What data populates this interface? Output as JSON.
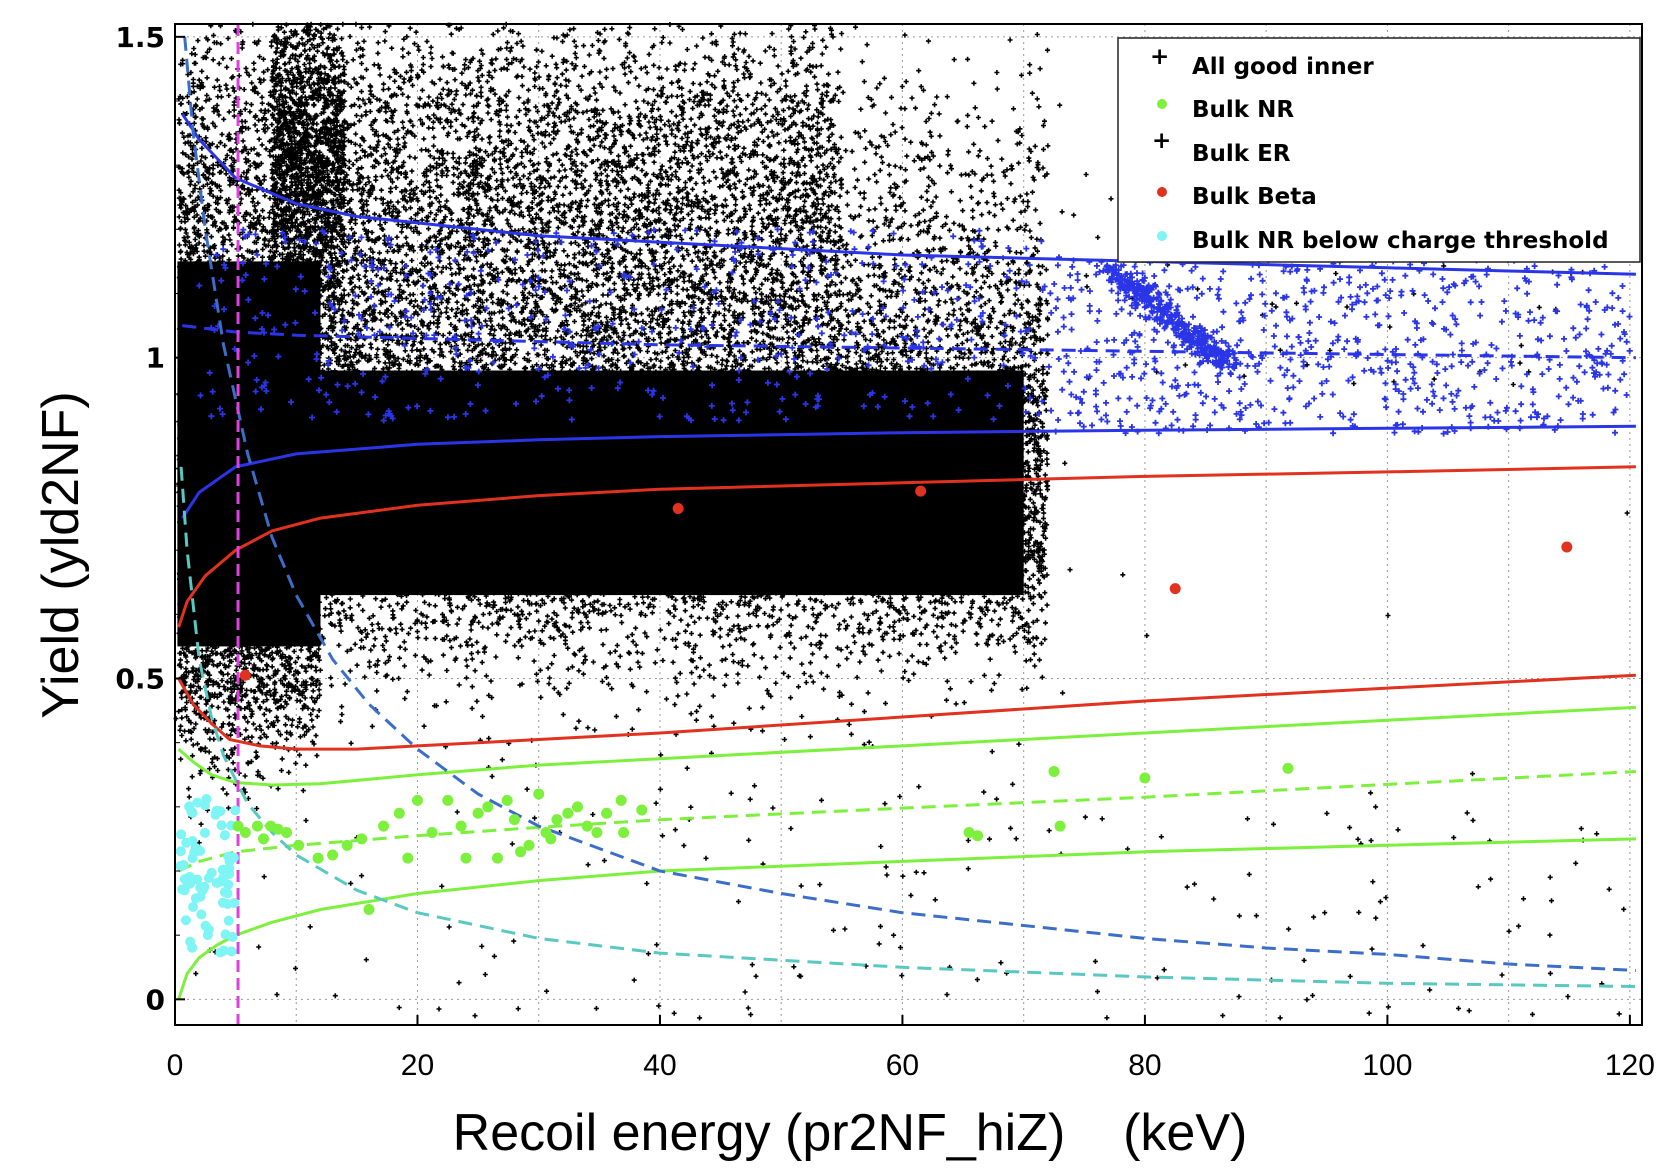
{
  "chart_data": {
    "type": "scatter",
    "xlabel": "Recoil energy (pr2NF_hiZ)    (keV)",
    "ylabel": "Yield (yld2NF)",
    "xlim": [
      0,
      121
    ],
    "ylim": [
      -0.04,
      1.52
    ],
    "xticks": [
      0,
      20,
      40,
      60,
      80,
      100,
      120
    ],
    "yticks": [
      0,
      0.5,
      1,
      1.5
    ],
    "ytick_labels": [
      "0",
      "0.5",
      "1",
      "1.5"
    ],
    "grid": true,
    "threshold_x": 5.2,
    "legend": {
      "position": "top-right",
      "entries": [
        {
          "label": "All good inner",
          "color": "#000000",
          "marker": "plus"
        },
        {
          "label": "Bulk NR",
          "color": "#7cf03c",
          "marker": "dot"
        },
        {
          "label": "Bulk ER",
          "color": "#2a35e8",
          "marker": "plus"
        },
        {
          "label": "Bulk Beta",
          "color": "#e0321e",
          "marker": "dot"
        },
        {
          "label": "Bulk NR below charge threshold",
          "color": "#7ef4f4",
          "marker": "dot"
        }
      ]
    },
    "colors": {
      "all": "#000000",
      "nr": "#7cf03c",
      "er": "#2a35e8",
      "beta": "#e0321e",
      "nr_below": "#7ef4f4",
      "threshold": "#e040e0",
      "curve_nr_threshold": "#58c8c0",
      "curve_charge": "#3a6ec8",
      "grid": "#999999"
    },
    "series": [
      {
        "name": "Bulk Beta",
        "points": [
          [
            5.8,
            0.505
          ],
          [
            41.5,
            0.765
          ],
          [
            61.5,
            0.792
          ],
          [
            82.5,
            0.64
          ],
          [
            114.8,
            0.705
          ]
        ]
      },
      {
        "name": "Bulk NR",
        "points": [
          [
            5.2,
            0.27
          ],
          [
            5.8,
            0.26
          ],
          [
            6.8,
            0.27
          ],
          [
            7.3,
            0.25
          ],
          [
            7.9,
            0.27
          ],
          [
            8.5,
            0.265
          ],
          [
            9.2,
            0.26
          ],
          [
            10.2,
            0.24
          ],
          [
            11.8,
            0.22
          ],
          [
            13.0,
            0.225
          ],
          [
            14.2,
            0.24
          ],
          [
            15.4,
            0.25
          ],
          [
            16.0,
            0.14
          ],
          [
            17.2,
            0.27
          ],
          [
            18.5,
            0.29
          ],
          [
            19.2,
            0.22
          ],
          [
            20.0,
            0.31
          ],
          [
            21.2,
            0.26
          ],
          [
            22.5,
            0.31
          ],
          [
            23.6,
            0.27
          ],
          [
            24.0,
            0.22
          ],
          [
            25.0,
            0.29
          ],
          [
            25.8,
            0.3
          ],
          [
            26.6,
            0.22
          ],
          [
            27.4,
            0.31
          ],
          [
            28.0,
            0.28
          ],
          [
            28.5,
            0.23
          ],
          [
            29.2,
            0.24
          ],
          [
            30.0,
            0.32
          ],
          [
            30.6,
            0.26
          ],
          [
            31.0,
            0.25
          ],
          [
            31.5,
            0.28
          ],
          [
            32.4,
            0.29
          ],
          [
            33.2,
            0.3
          ],
          [
            34.0,
            0.27
          ],
          [
            34.8,
            0.26
          ],
          [
            35.6,
            0.29
          ],
          [
            36.8,
            0.31
          ],
          [
            37.0,
            0.26
          ],
          [
            38.5,
            0.295
          ],
          [
            65.5,
            0.26
          ],
          [
            66.2,
            0.255
          ],
          [
            72.5,
            0.355
          ],
          [
            73.0,
            0.27
          ],
          [
            80.0,
            0.345
          ],
          [
            91.8,
            0.36
          ]
        ]
      }
    ],
    "bands": [
      {
        "name": "ER band upper",
        "style": "solid",
        "color": "#2a35e8",
        "points": [
          [
            0.6,
            1.38
          ],
          [
            2,
            1.34
          ],
          [
            5,
            1.28
          ],
          [
            10,
            1.24
          ],
          [
            15,
            1.22
          ],
          [
            20,
            1.21
          ],
          [
            30,
            1.19
          ],
          [
            40,
            1.18
          ],
          [
            50,
            1.17
          ],
          [
            60,
            1.16
          ],
          [
            70,
            1.155
          ],
          [
            80,
            1.15
          ],
          [
            90,
            1.145
          ],
          [
            100,
            1.14
          ],
          [
            110,
            1.135
          ],
          [
            120.5,
            1.13
          ]
        ]
      },
      {
        "name": "ER band mean",
        "style": "dashed",
        "color": "#2a35e8",
        "points": [
          [
            0.6,
            1.05
          ],
          [
            5,
            1.04
          ],
          [
            10,
            1.035
          ],
          [
            20,
            1.03
          ],
          [
            30,
            1.025
          ],
          [
            40,
            1.02
          ],
          [
            60,
            1.015
          ],
          [
            80,
            1.01
          ],
          [
            100,
            1.005
          ],
          [
            120.5,
            1.0
          ]
        ]
      },
      {
        "name": "ER band lower",
        "style": "solid",
        "color": "#2a35e8",
        "points": [
          [
            0.6,
            0.75
          ],
          [
            2,
            0.79
          ],
          [
            5,
            0.83
          ],
          [
            10,
            0.85
          ],
          [
            20,
            0.865
          ],
          [
            30,
            0.872
          ],
          [
            40,
            0.877
          ],
          [
            60,
            0.883
          ],
          [
            80,
            0.887
          ],
          [
            100,
            0.89
          ],
          [
            120.5,
            0.893
          ]
        ]
      },
      {
        "name": "Beta band upper",
        "style": "solid",
        "color": "#e0321e",
        "points": [
          [
            0.3,
            0.58
          ],
          [
            1,
            0.62
          ],
          [
            2.5,
            0.66
          ],
          [
            5,
            0.7
          ],
          [
            8,
            0.73
          ],
          [
            12,
            0.75
          ],
          [
            20,
            0.77
          ],
          [
            30,
            0.785
          ],
          [
            40,
            0.795
          ],
          [
            60,
            0.805
          ],
          [
            80,
            0.815
          ],
          [
            100,
            0.822
          ],
          [
            120.5,
            0.83
          ]
        ]
      },
      {
        "name": "Beta band lower",
        "style": "solid",
        "color": "#e0321e",
        "points": [
          [
            0.3,
            0.5
          ],
          [
            1.5,
            0.46
          ],
          [
            3,
            0.43
          ],
          [
            4.5,
            0.405
          ],
          [
            7,
            0.395
          ],
          [
            10,
            0.39
          ],
          [
            15,
            0.39
          ],
          [
            20,
            0.395
          ],
          [
            30,
            0.405
          ],
          [
            40,
            0.415
          ],
          [
            60,
            0.44
          ],
          [
            80,
            0.465
          ],
          [
            100,
            0.485
          ],
          [
            120.5,
            0.505
          ]
        ]
      },
      {
        "name": "NR band upper",
        "style": "solid",
        "color": "#7cf03c",
        "points": [
          [
            0.3,
            0.39
          ],
          [
            1.5,
            0.37
          ],
          [
            3,
            0.35
          ],
          [
            5,
            0.338
          ],
          [
            8,
            0.334
          ],
          [
            12,
            0.336
          ],
          [
            20,
            0.35
          ],
          [
            30,
            0.365
          ],
          [
            40,
            0.375
          ],
          [
            60,
            0.395
          ],
          [
            80,
            0.415
          ],
          [
            100,
            0.435
          ],
          [
            120.5,
            0.455
          ]
        ]
      },
      {
        "name": "NR band mean",
        "style": "dashed",
        "color": "#7cf03c",
        "points": [
          [
            0.3,
            0.2
          ],
          [
            2,
            0.215
          ],
          [
            5,
            0.23
          ],
          [
            10,
            0.24
          ],
          [
            20,
            0.255
          ],
          [
            30,
            0.268
          ],
          [
            40,
            0.28
          ],
          [
            60,
            0.298
          ],
          [
            80,
            0.315
          ],
          [
            100,
            0.335
          ],
          [
            120.5,
            0.355
          ]
        ]
      },
      {
        "name": "NR band lower",
        "style": "solid",
        "color": "#7cf03c",
        "points": [
          [
            0.3,
            0.0
          ],
          [
            1,
            0.04
          ],
          [
            2,
            0.065
          ],
          [
            3.5,
            0.085
          ],
          [
            5,
            0.1
          ],
          [
            8,
            0.12
          ],
          [
            12,
            0.14
          ],
          [
            20,
            0.165
          ],
          [
            30,
            0.185
          ],
          [
            40,
            0.2
          ],
          [
            60,
            0.215
          ],
          [
            80,
            0.23
          ],
          [
            100,
            0.24
          ],
          [
            120.5,
            0.25
          ]
        ]
      },
      {
        "name": "NR threshold curve",
        "style": "dashed",
        "color": "#58c8c0",
        "points": [
          [
            0.5,
            0.83
          ],
          [
            1,
            0.7
          ],
          [
            2,
            0.53
          ],
          [
            3,
            0.44
          ],
          [
            4,
            0.38
          ],
          [
            6,
            0.305
          ],
          [
            8,
            0.26
          ],
          [
            10,
            0.225
          ],
          [
            15,
            0.17
          ],
          [
            20,
            0.135
          ],
          [
            30,
            0.095
          ],
          [
            40,
            0.072
          ],
          [
            60,
            0.05
          ],
          [
            80,
            0.035
          ],
          [
            100,
            0.025
          ],
          [
            120.5,
            0.02
          ]
        ]
      },
      {
        "name": "charge threshold curve",
        "style": "dashed",
        "color": "#3a6ec8",
        "points": [
          [
            0.8,
            1.5
          ],
          [
            1.5,
            1.35
          ],
          [
            2.5,
            1.2
          ],
          [
            4,
            1.02
          ],
          [
            6,
            0.85
          ],
          [
            8,
            0.72
          ],
          [
            10,
            0.63
          ],
          [
            13,
            0.53
          ],
          [
            16,
            0.46
          ],
          [
            20,
            0.39
          ],
          [
            25,
            0.32
          ],
          [
            30,
            0.27
          ],
          [
            40,
            0.2
          ],
          [
            50,
            0.165
          ],
          [
            60,
            0.135
          ],
          [
            70,
            0.115
          ],
          [
            80,
            0.095
          ],
          [
            90,
            0.08
          ],
          [
            100,
            0.07
          ],
          [
            110,
            0.055
          ],
          [
            120.5,
            0.045
          ]
        ]
      }
    ]
  }
}
